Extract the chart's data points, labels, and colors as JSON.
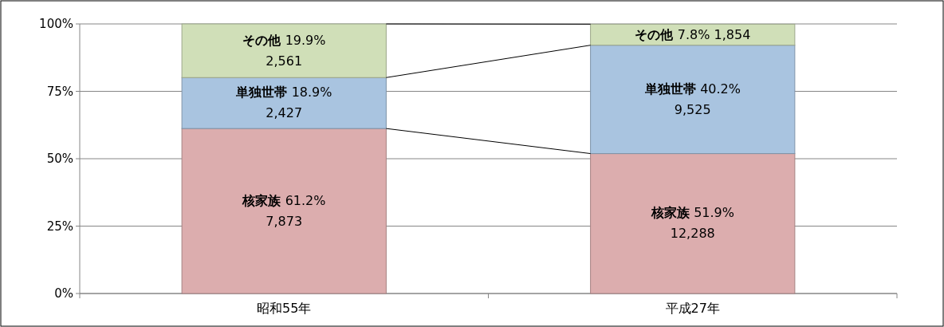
{
  "chart_data": {
    "type": "bar",
    "stacked": true,
    "categories": [
      "昭和55年",
      "平成27年"
    ],
    "series": [
      {
        "name": "核家族",
        "color": "#dcadae",
        "values": [
          61.2,
          51.9
        ],
        "value_labels": [
          "61.2%\n7,873",
          "51.9%\n12,288"
        ]
      },
      {
        "name": "単独世帯",
        "color": "#a9c4e0",
        "values": [
          18.9,
          40.2
        ],
        "value_labels": [
          "18.9%\n2,427",
          "40.2%\n9,525"
        ]
      },
      {
        "name": "その他",
        "color": "#d0dfb8",
        "values": [
          19.9,
          7.8
        ],
        "value_labels": [
          "19.9%\n2,561",
          "7.8% 1,854"
        ]
      }
    ],
    "ylim": [
      0,
      100
    ],
    "yticks": [
      {
        "value": 0,
        "label": "0%"
      },
      {
        "value": 25,
        "label": "25%"
      },
      {
        "value": 50,
        "label": "50%"
      },
      {
        "value": 75,
        "label": "75%"
      },
      {
        "value": 100,
        "label": "100%"
      }
    ],
    "grid": "y",
    "legend": false
  }
}
